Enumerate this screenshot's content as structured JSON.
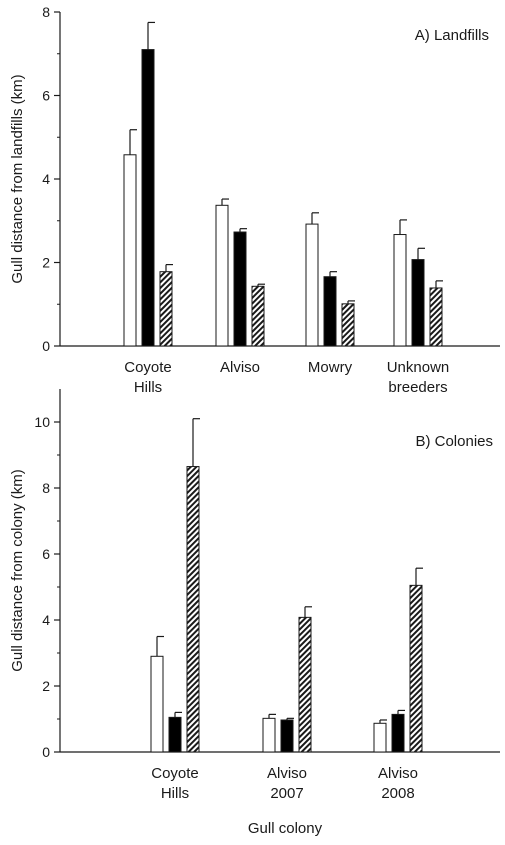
{
  "colors": {
    "axis": "#1a1a1a",
    "open_bar": "#ffffff",
    "filled_bar": "#000000",
    "hatched_bar": "#1a1a1a"
  },
  "xlabel_shared": "Gull colony",
  "chart_data": [
    {
      "type": "bar",
      "title": "A) Landfills",
      "ylabel": "Gull distance from landfills (km)",
      "xlabel": "",
      "ylim": [
        0,
        8
      ],
      "yticks": [
        0,
        2,
        4,
        6,
        8
      ],
      "grid": false,
      "categories": [
        [
          "Coyote",
          "Hills"
        ],
        [
          "Alviso"
        ],
        [
          "Mowry"
        ],
        [
          "Unknown",
          "breeders"
        ]
      ],
      "series": [
        {
          "style": "open",
          "values": [
            4.58,
            3.37,
            2.92,
            2.67
          ],
          "errors": [
            0.6,
            0.15,
            0.27,
            0.35
          ]
        },
        {
          "style": "filled",
          "values": [
            7.1,
            2.73,
            1.66,
            2.07
          ],
          "errors": [
            0.65,
            0.08,
            0.12,
            0.27
          ]
        },
        {
          "style": "hatched",
          "values": [
            1.78,
            1.43,
            1.01,
            1.39
          ],
          "errors": [
            0.17,
            0.05,
            0.07,
            0.17
          ]
        }
      ]
    },
    {
      "type": "bar",
      "title": "B) Colonies",
      "ylabel": "Gull distance from colony (km)",
      "xlabel": "Gull colony",
      "ylim": [
        0,
        11
      ],
      "yticks": [
        0,
        2,
        4,
        6,
        8,
        10
      ],
      "grid": false,
      "categories": [
        [
          "Coyote",
          "Hills"
        ],
        [
          "Alviso",
          "2007"
        ],
        [
          "Alviso",
          "2008"
        ]
      ],
      "series": [
        {
          "style": "open",
          "values": [
            2.9,
            1.02,
            0.87
          ],
          "errors": [
            0.6,
            0.12,
            0.1
          ]
        },
        {
          "style": "filled",
          "values": [
            1.05,
            0.97,
            1.14
          ],
          "errors": [
            0.15,
            0.05,
            0.12
          ]
        },
        {
          "style": "hatched",
          "values": [
            8.65,
            4.08,
            5.05
          ],
          "errors": [
            1.45,
            0.32,
            0.52
          ]
        }
      ]
    }
  ]
}
